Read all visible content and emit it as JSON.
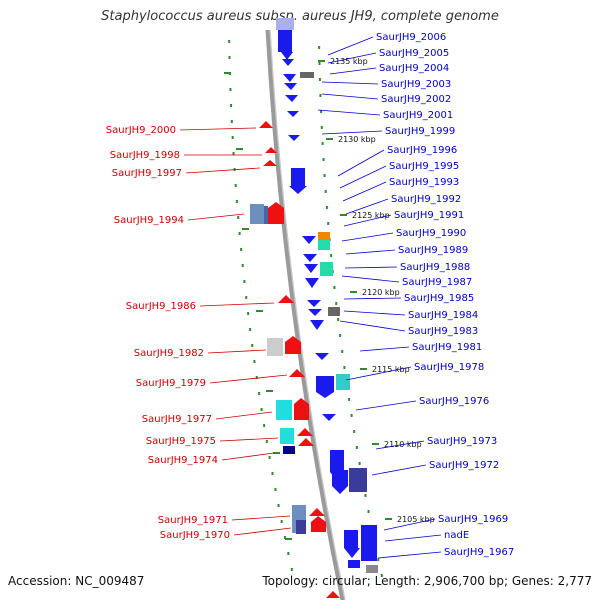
{
  "title": "Staphylococcus aureus subsp. aureus JH9, complete genome",
  "footer": {
    "accession_label": "Accession:",
    "accession": "NC_009487",
    "topology_label": "Topology:",
    "topology": "circular",
    "length_label": "Length:",
    "length": "2,906,700 bp",
    "genes_label": "Genes:",
    "genes": "2,777"
  },
  "colors": {
    "forward": "#ee1111",
    "reverse": "#1a1aee",
    "backbone": "#888888",
    "dots": "#2e8b2e",
    "tick_mark": "#2e8b2e"
  },
  "ticks": [
    {
      "label": "2135 kbp"
    },
    {
      "label": "2130 kbp"
    },
    {
      "label": "2125 kbp"
    },
    {
      "label": "2120 kbp"
    },
    {
      "label": "2115 kbp"
    },
    {
      "label": "2110 kbp"
    },
    {
      "label": "2105 kbp"
    }
  ],
  "forward_labels": [
    "SaurJH9_2000",
    "SaurJH9_1998",
    "SaurJH9_1997",
    "SaurJH9_1994",
    "SaurJH9_1986",
    "SaurJH9_1982",
    "SaurJH9_1979",
    "SaurJH9_1977",
    "SaurJH9_1975",
    "SaurJH9_1974",
    "SaurJH9_1971",
    "SaurJH9_1970"
  ],
  "reverse_labels": [
    "SaurJH9_2006",
    "SaurJH9_2005",
    "SaurJH9_2004",
    "SaurJH9_2003",
    "SaurJH9_2002",
    "SaurJH9_2001",
    "SaurJH9_1999",
    "SaurJH9_1996",
    "SaurJH9_1995",
    "SaurJH9_1993",
    "SaurJH9_1992",
    "SaurJH9_1991",
    "SaurJH9_1990",
    "SaurJH9_1989",
    "SaurJH9_1988",
    "SaurJH9_1987",
    "SaurJH9_1985",
    "SaurJH9_1984",
    "SaurJH9_1983",
    "SaurJH9_1981",
    "SaurJH9_1978",
    "SaurJH9_1976",
    "SaurJH9_1973",
    "SaurJH9_1972",
    "SaurJH9_1969",
    "nadE",
    "SaurJH9_1967"
  ]
}
